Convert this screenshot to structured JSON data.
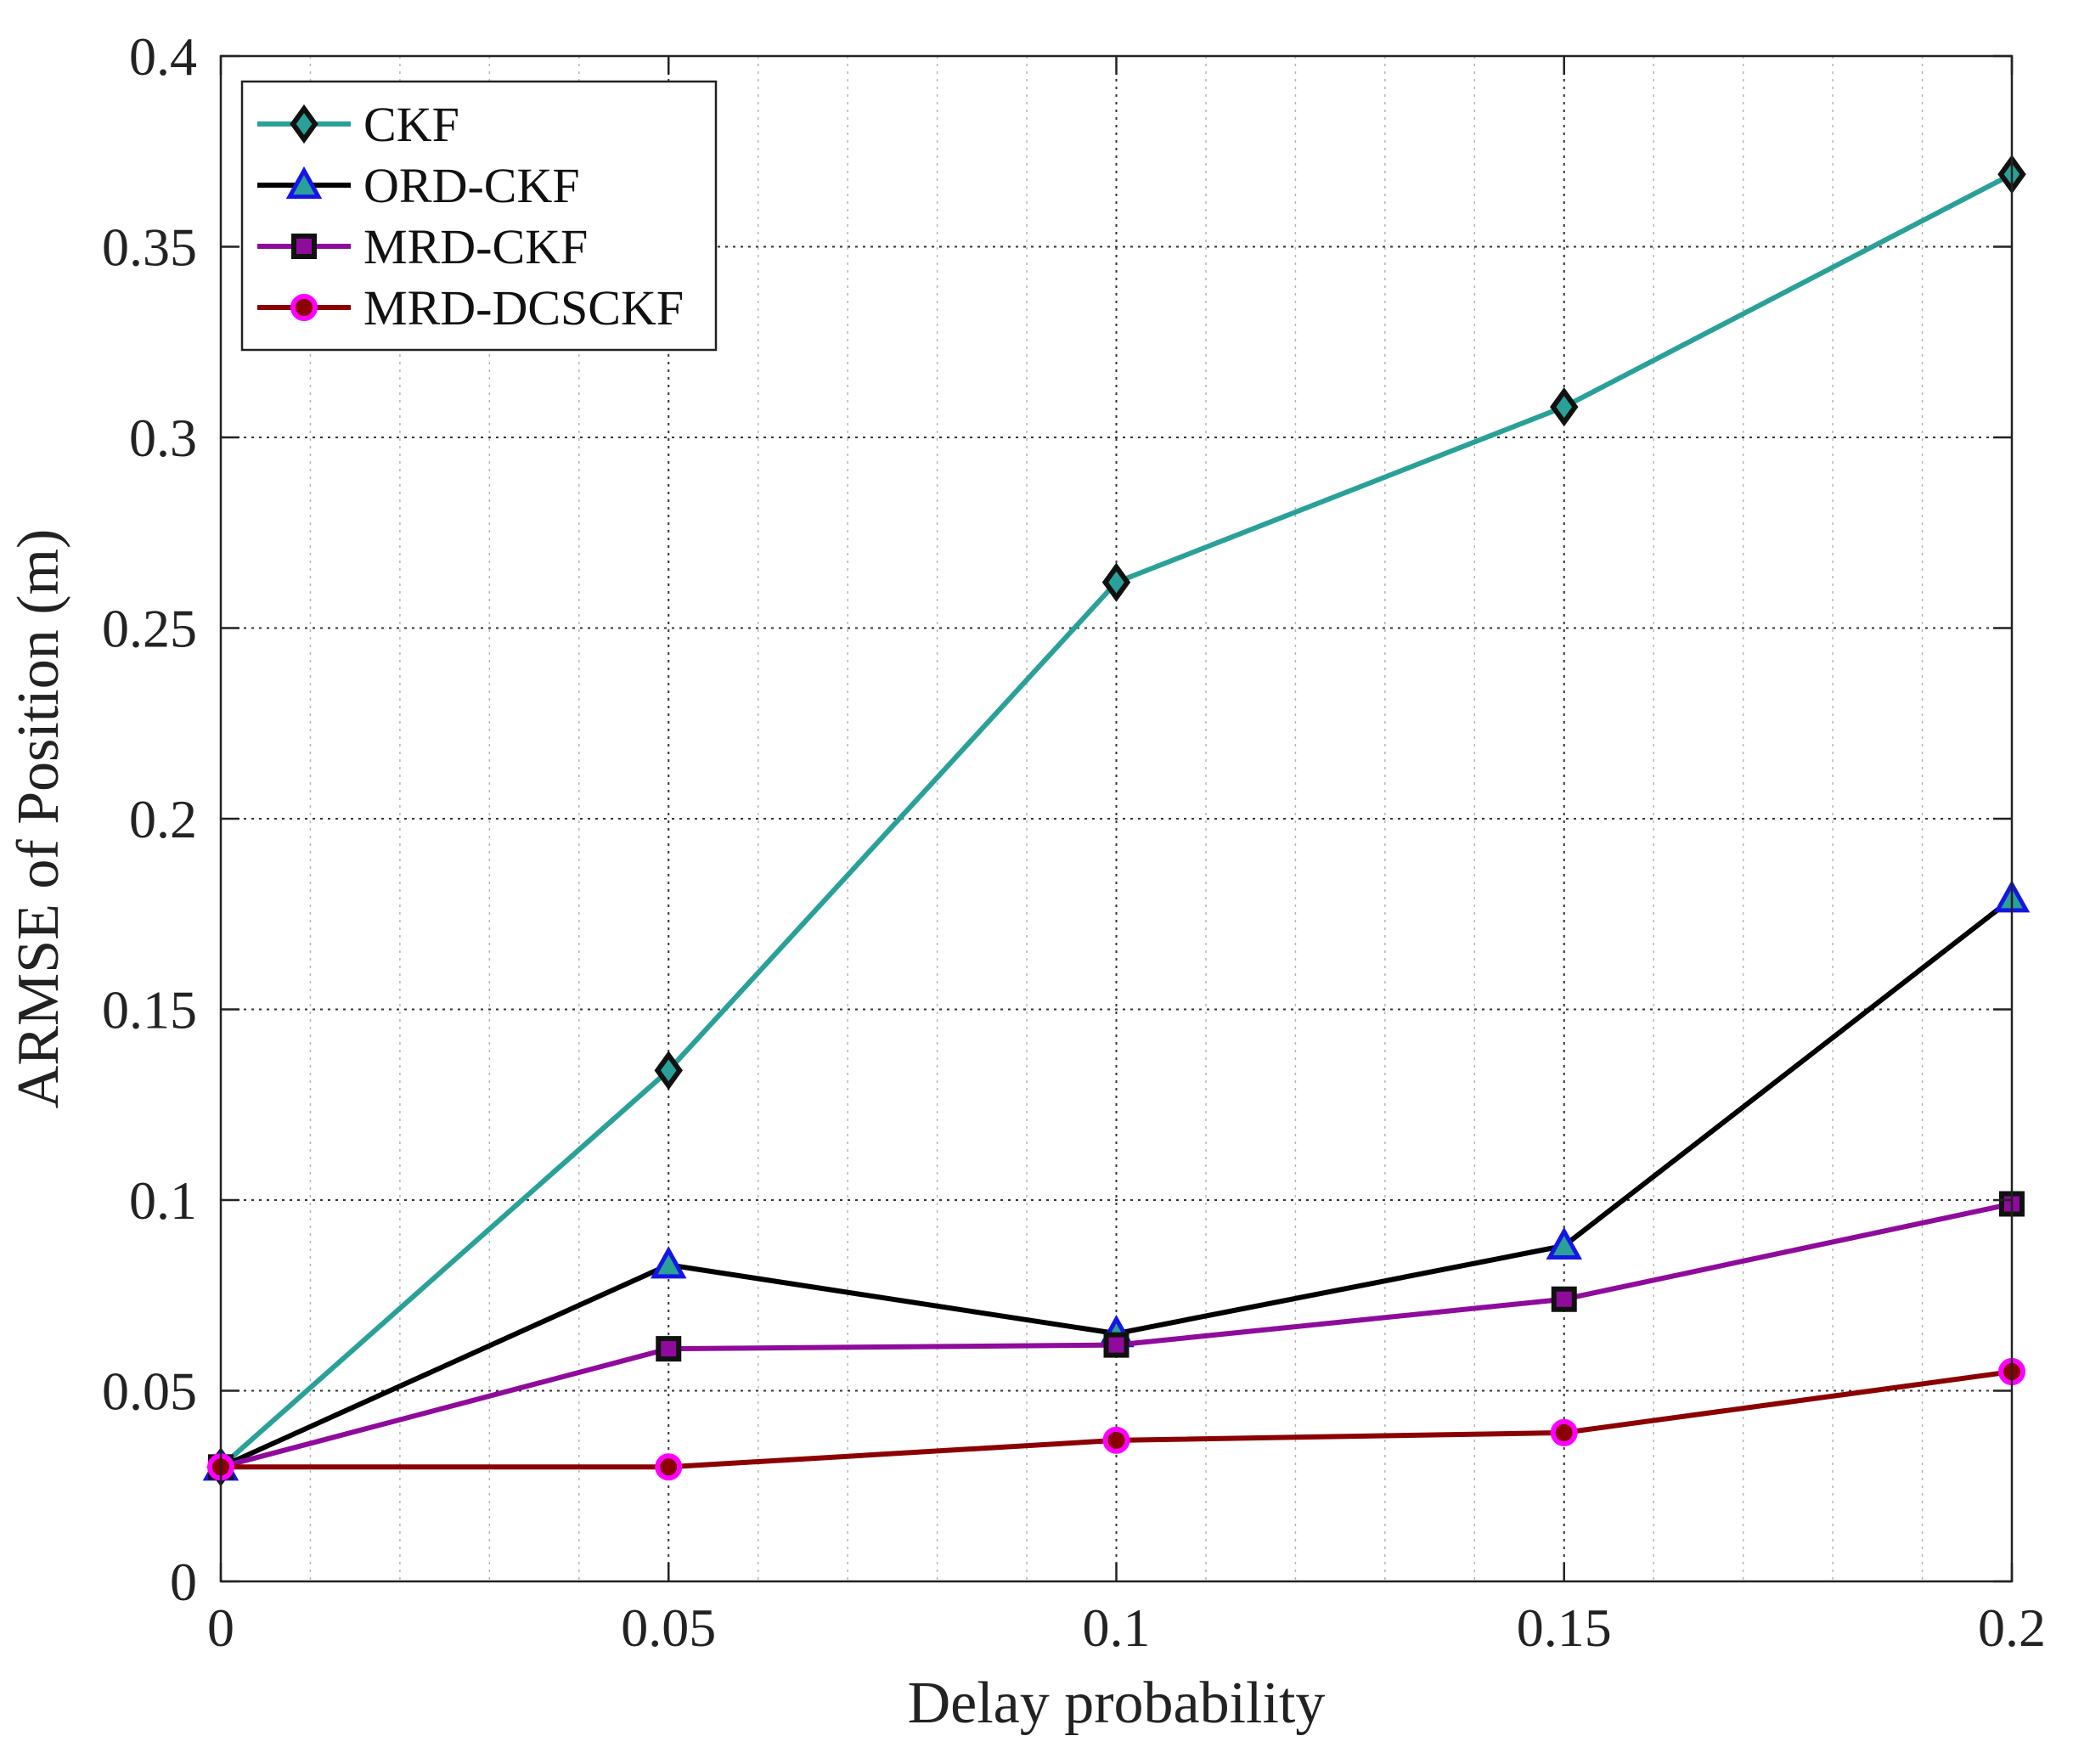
{
  "chart_data": {
    "type": "line",
    "title": "",
    "xlabel": "Delay probability",
    "ylabel": "ARMSE of Position (m)",
    "x": [
      0,
      0.05,
      0.1,
      0.15,
      0.2
    ],
    "xlim": [
      0,
      0.2
    ],
    "ylim": [
      0,
      0.4
    ],
    "xticks": [
      0,
      0.05,
      0.1,
      0.15,
      0.2
    ],
    "xtick_labels": [
      "0",
      "0.05",
      "0.1",
      "0.15",
      "0.2"
    ],
    "yticks": [
      0,
      0.05,
      0.1,
      0.15,
      0.2,
      0.25,
      0.3,
      0.35,
      0.4
    ],
    "ytick_labels": [
      "0",
      "0.05",
      "0.1",
      "0.15",
      "0.2",
      "0.25",
      "0.3",
      "0.35",
      "0.4"
    ],
    "grid": true,
    "minor_grid_x": true,
    "legend_position": "top-left",
    "series": [
      {
        "name": "CKF",
        "values": [
          0.03,
          0.134,
          0.262,
          0.308,
          0.369
        ],
        "color": "#2aa198",
        "marker": "diamond",
        "marker_edge": "#111111",
        "marker_face": "#2aa198"
      },
      {
        "name": "ORD-CKF",
        "values": [
          0.03,
          0.083,
          0.065,
          0.088,
          0.179
        ],
        "color": "#000000",
        "marker": "triangle",
        "marker_edge": "#1515e6",
        "marker_face": "#2aa198"
      },
      {
        "name": "MRD-CKF",
        "values": [
          0.03,
          0.061,
          0.062,
          0.074,
          0.099
        ],
        "color": "#8e0b9c",
        "marker": "square",
        "marker_edge": "#111111",
        "marker_face": "#8e0b9c"
      },
      {
        "name": "MRD-DCSCKF",
        "values": [
          0.03,
          0.03,
          0.037,
          0.039,
          0.055
        ],
        "color": "#8b0000",
        "marker": "circle",
        "marker_edge": "#ff00ff",
        "marker_face": "#8b0000"
      }
    ]
  }
}
